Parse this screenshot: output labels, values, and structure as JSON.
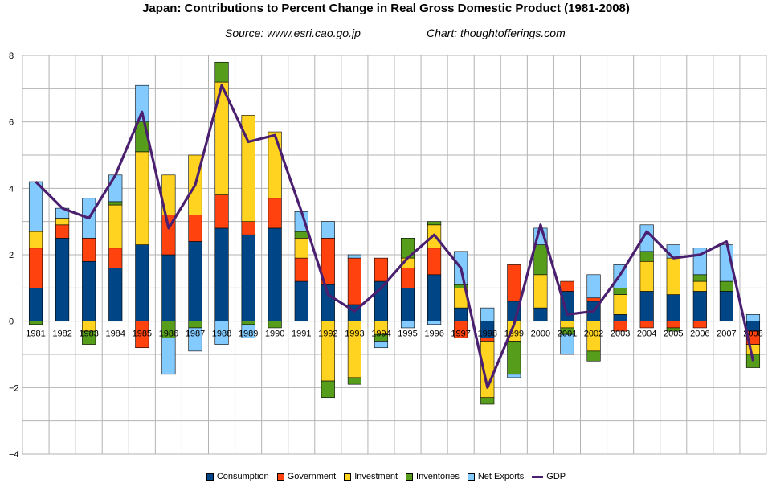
{
  "chart_data": {
    "type": "bar",
    "stacked": true,
    "title": "Japan: Contributions to Percent Change in Real Gross Domestic Product (1981-2008)",
    "source": "Source: www.esri.cao.go.jp",
    "credit": "Chart: thoughtofferings.com",
    "xlabel": "",
    "ylabel": "",
    "ylim": [
      -4,
      8
    ],
    "yticks": [
      "8",
      "6",
      "4",
      "2",
      "0",
      "−2",
      "−4"
    ],
    "categories": [
      "1981",
      "1982",
      "1983",
      "1984",
      "1985",
      "1986",
      "1987",
      "1988",
      "1989",
      "1990",
      "1991",
      "1992",
      "1993",
      "1994",
      "1995",
      "1996",
      "1997",
      "1998",
      "1999",
      "2000",
      "2001",
      "2002",
      "2003",
      "2004",
      "2005",
      "2006",
      "2007",
      "2008"
    ],
    "series": [
      {
        "name": "Consumption",
        "color": "#004586",
        "values": [
          1.0,
          2.5,
          1.8,
          1.6,
          2.3,
          2.0,
          2.4,
          2.8,
          2.6,
          2.8,
          1.2,
          1.1,
          0.5,
          1.2,
          1.0,
          1.4,
          0.4,
          -0.5,
          0.6,
          0.4,
          0.9,
          0.6,
          0.2,
          0.9,
          0.8,
          0.9,
          0.9,
          -0.3
        ]
      },
      {
        "name": "Government",
        "color": "#ff420e",
        "values": [
          1.2,
          0.4,
          0.7,
          0.6,
          -0.8,
          1.2,
          0.8,
          1.0,
          0.4,
          0.9,
          0.7,
          1.4,
          1.4,
          0.7,
          0.6,
          0.8,
          -0.5,
          -0.1,
          1.1,
          0.0,
          0.3,
          0.1,
          -0.3,
          -0.2,
          -0.2,
          -0.2,
          0.0,
          -0.4
        ]
      },
      {
        "name": "Investment",
        "color": "#ffd320",
        "values": [
          0.5,
          0.2,
          -0.3,
          1.3,
          2.8,
          1.2,
          1.8,
          3.4,
          3.2,
          2.0,
          0.6,
          -1.8,
          -1.7,
          -0.4,
          0.3,
          0.7,
          0.6,
          -1.7,
          -0.6,
          1.0,
          -0.2,
          -0.9,
          0.6,
          0.9,
          1.1,
          0.3,
          0.0,
          -0.3
        ]
      },
      {
        "name": "Inventories",
        "color": "#579d1c",
        "values": [
          -0.1,
          0.0,
          -0.4,
          0.1,
          0.9,
          -0.5,
          -0.2,
          0.6,
          -0.1,
          -0.2,
          0.2,
          -0.5,
          -0.2,
          -0.2,
          0.6,
          0.1,
          0.1,
          -0.2,
          -1.0,
          0.9,
          -0.2,
          -0.3,
          0.2,
          0.3,
          -0.1,
          0.2,
          0.3,
          -0.4
        ]
      },
      {
        "name": "Net Exports",
        "color": "#83caff",
        "values": [
          1.5,
          0.3,
          1.2,
          0.8,
          1.1,
          -1.1,
          -0.7,
          -0.7,
          -0.4,
          0.0,
          0.6,
          0.5,
          0.1,
          -0.2,
          -0.2,
          -0.1,
          1.0,
          0.4,
          -0.1,
          0.5,
          -0.6,
          0.7,
          0.7,
          0.8,
          0.4,
          0.8,
          1.1,
          0.2
        ]
      }
    ],
    "line": {
      "name": "GDP",
      "color": "#4b1f6f",
      "values": [
        4.2,
        3.4,
        3.1,
        4.4,
        6.3,
        2.8,
        4.1,
        7.1,
        5.4,
        5.6,
        3.3,
        0.8,
        0.3,
        1.0,
        1.9,
        2.6,
        1.6,
        -2.0,
        -0.1,
        2.9,
        0.2,
        0.3,
        1.4,
        2.7,
        1.9,
        2.0,
        2.4,
        -1.2
      ]
    },
    "grid": true,
    "legend_position": "bottom-center"
  }
}
